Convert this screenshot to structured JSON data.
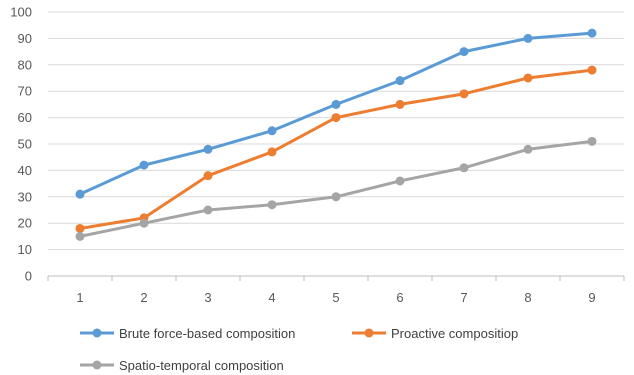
{
  "chart_data": {
    "type": "line",
    "x": [
      1,
      2,
      3,
      4,
      5,
      6,
      7,
      8,
      9
    ],
    "ylim": [
      0,
      100
    ],
    "yticks": [
      0,
      10,
      20,
      30,
      40,
      50,
      60,
      70,
      80,
      90,
      100
    ],
    "grid": true,
    "legend_position": "bottom",
    "series": [
      {
        "name": "Brute force-based composition",
        "color": "#5B9BD5",
        "values": [
          31,
          42,
          48,
          55,
          65,
          74,
          85,
          90,
          92
        ]
      },
      {
        "name": "Proactive compositiop",
        "color": "#ED7D31",
        "values": [
          18,
          22,
          38,
          47,
          60,
          65,
          69,
          75,
          78
        ]
      },
      {
        "name": "Spatio-temporal composition",
        "color": "#A5A5A5",
        "values": [
          15,
          20,
          25,
          27,
          30,
          36,
          41,
          48,
          51
        ]
      }
    ]
  }
}
